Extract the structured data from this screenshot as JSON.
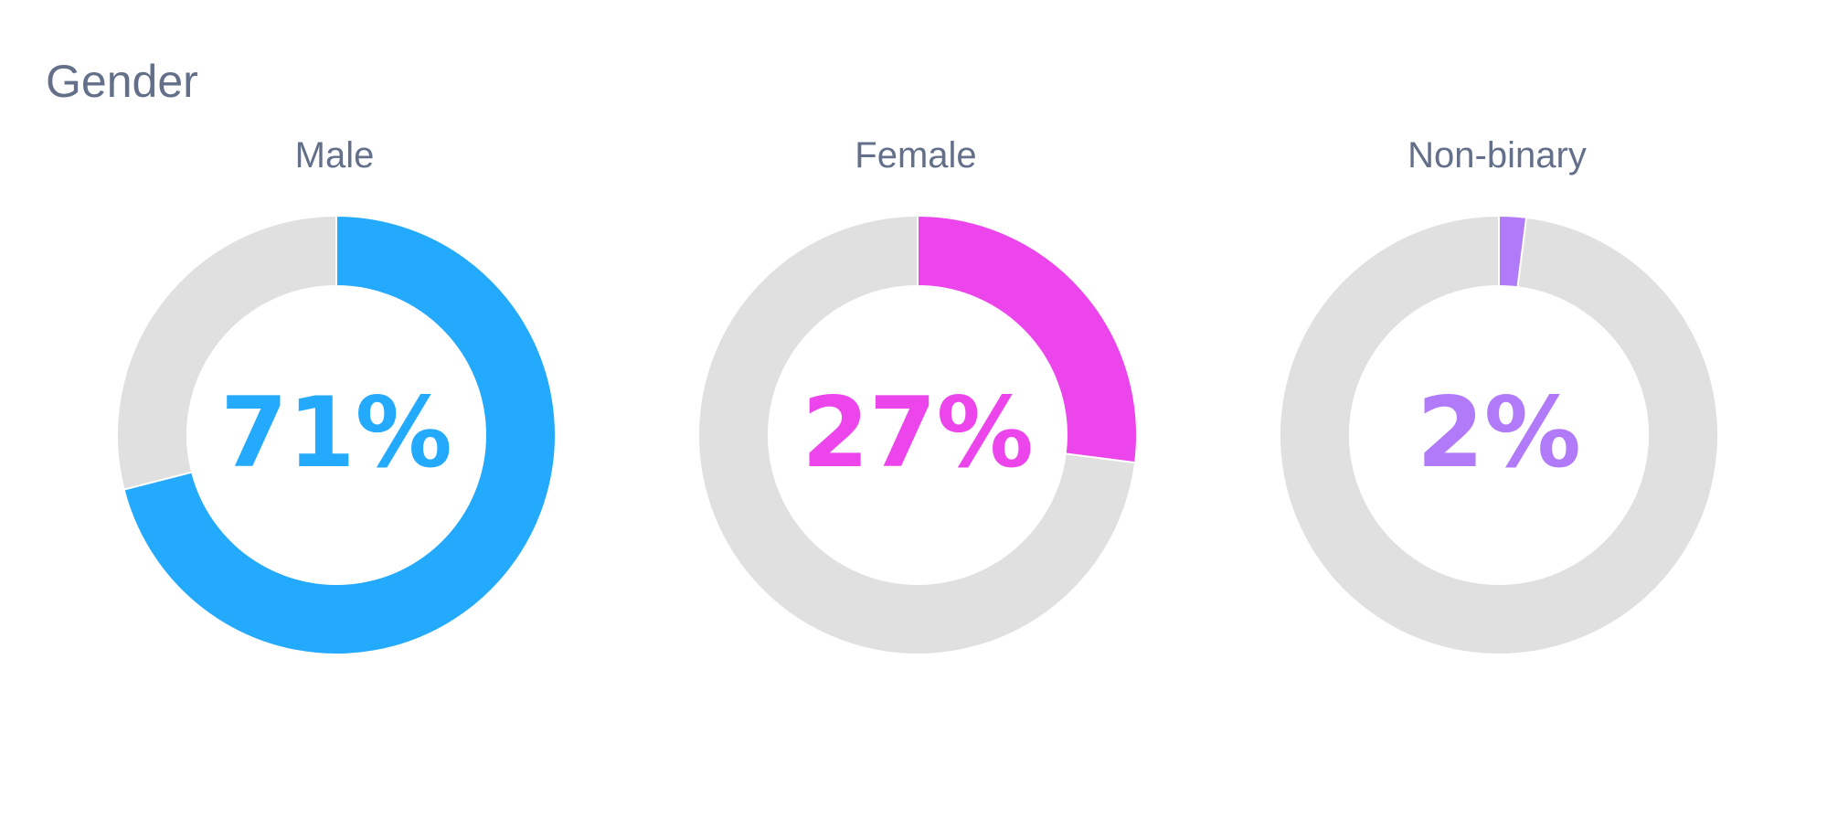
{
  "section": {
    "title": "Gender"
  },
  "colors": {
    "track": "#e0e0e0",
    "title_text": "#64708a",
    "male": "#23aafd",
    "female": "#ec45ec",
    "nonbinary": "#b07af8"
  },
  "chart_data": [
    {
      "type": "pie",
      "title": "Male",
      "center_label": "71%",
      "values": [
        71,
        29
      ],
      "color": "#23aafd"
    },
    {
      "type": "pie",
      "title": "Female",
      "center_label": "27%",
      "values": [
        27,
        73
      ],
      "color": "#ec45ec"
    },
    {
      "type": "pie",
      "title": "Non-binary",
      "center_label": "2%",
      "values": [
        2,
        98
      ],
      "color": "#b07af8"
    }
  ]
}
